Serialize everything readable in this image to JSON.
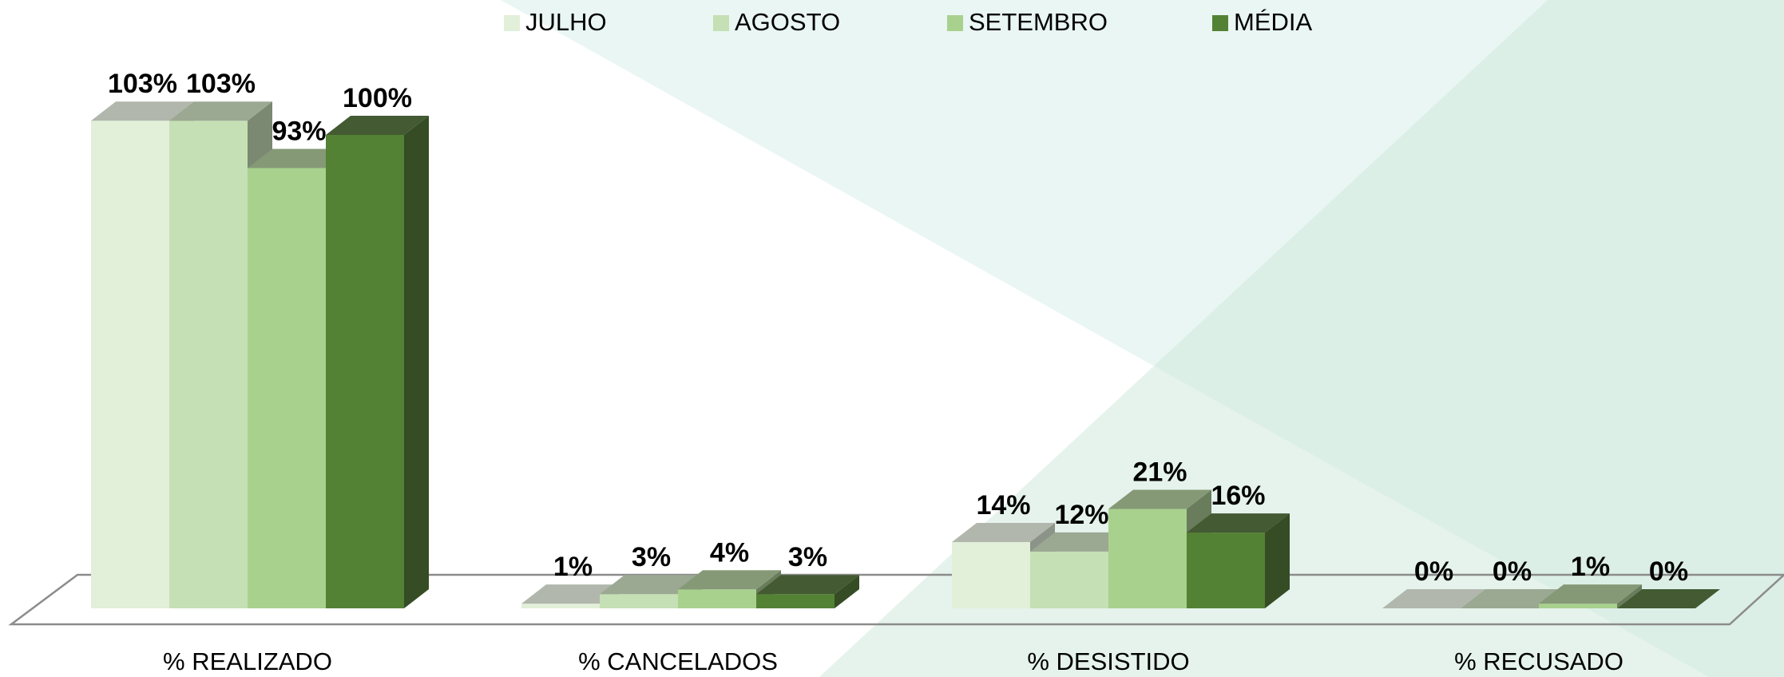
{
  "chart_data": {
    "type": "bar3d",
    "categories": [
      "% REALIZADO",
      "% CANCELADOS",
      "% DESISTIDO",
      "% RECUSADO"
    ],
    "series": [
      {
        "name": "JULHO",
        "color": "#e2efd9",
        "values": [
          103,
          1,
          14,
          0
        ],
        "value_labels": [
          "103%",
          "1%",
          "14%",
          "0%"
        ]
      },
      {
        "name": "AGOSTO",
        "color": "#c5e0b4",
        "values": [
          103,
          3,
          12,
          0
        ],
        "value_labels": [
          "103%",
          "3%",
          "12%",
          "0%"
        ]
      },
      {
        "name": "SETEMBRO",
        "color": "#a9d18e",
        "values": [
          93,
          4,
          21,
          1
        ],
        "value_labels": [
          "93%",
          "4%",
          "21%",
          "1%"
        ]
      },
      {
        "name": "MÉDIA",
        "color": "#548235",
        "values": [
          100,
          3,
          16,
          0
        ],
        "value_labels": [
          "100%",
          "3%",
          "16%",
          "0%"
        ]
      }
    ],
    "legend": "top"
  }
}
